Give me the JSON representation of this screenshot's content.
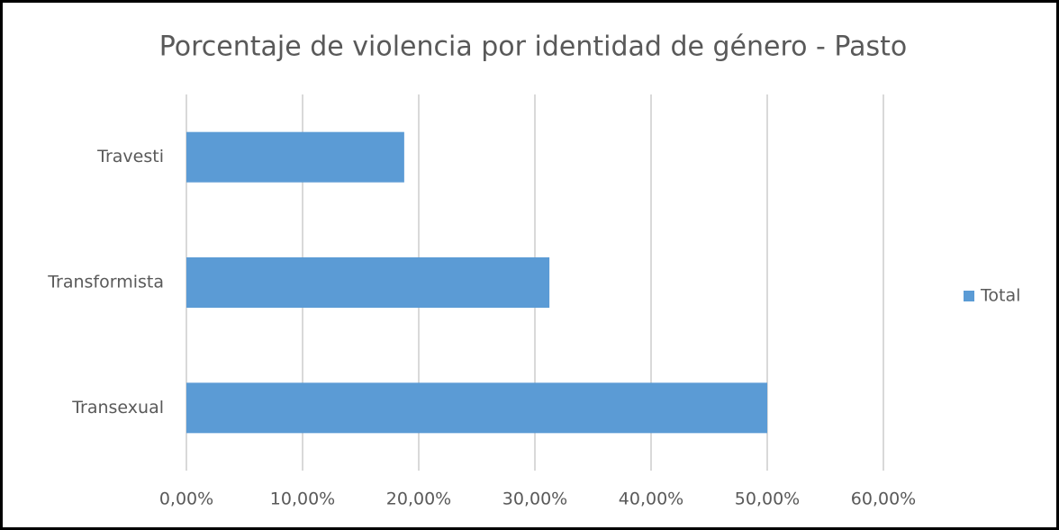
{
  "chart_data": {
    "type": "bar",
    "orientation": "horizontal",
    "title": "Porcentaje de violencia por identidad de género - Pasto",
    "categories": [
      "Travesti",
      "Transformista",
      "Transexual"
    ],
    "series": [
      {
        "name": "Total",
        "color": "#5b9bd5",
        "values": [
          18.75,
          31.25,
          50
        ]
      }
    ],
    "xlim": [
      0,
      60
    ],
    "xticks": [
      {
        "value": 0,
        "label": "0,00%"
      },
      {
        "value": 10,
        "label": "10,00%"
      },
      {
        "value": 20,
        "label": "20,00%"
      },
      {
        "value": 30,
        "label": "30,00%"
      },
      {
        "value": 40,
        "label": "40,00%"
      },
      {
        "value": 50,
        "label": "50,00%"
      },
      {
        "value": 60,
        "label": "60,00%"
      }
    ],
    "grid": true,
    "legend": "right"
  }
}
